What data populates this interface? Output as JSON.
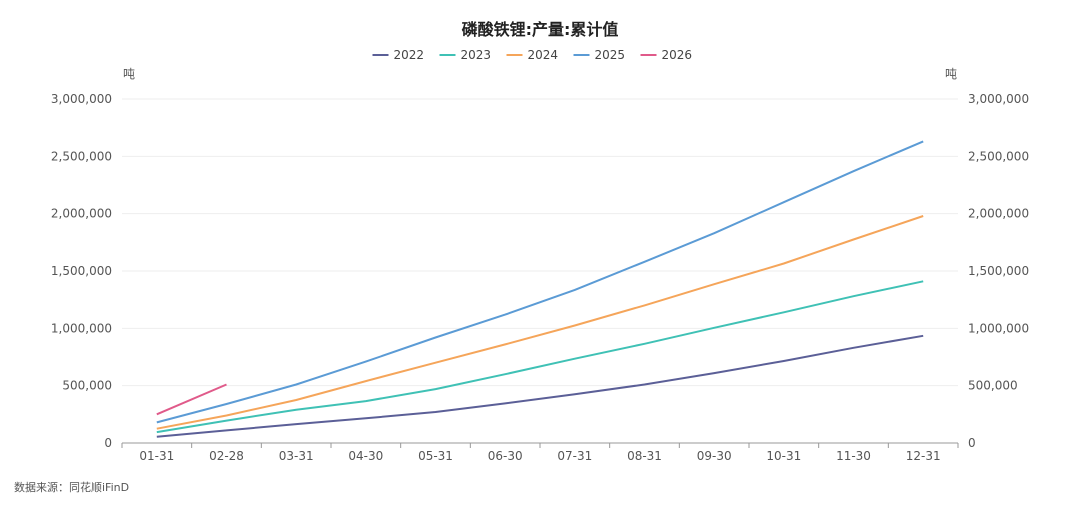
{
  "chart_data": {
    "type": "line",
    "title": "磷酸铁锂:产量:累计值",
    "categories": [
      "01-31",
      "02-28",
      "03-31",
      "04-30",
      "05-31",
      "06-30",
      "07-31",
      "08-31",
      "09-30",
      "10-31",
      "11-30",
      "12-31"
    ],
    "y_unit_left": "吨",
    "y_unit_right": "吨",
    "ylim": [
      0,
      3000000
    ],
    "y_ticks": [
      "0",
      "500,000",
      "1,000,000",
      "1,500,000",
      "2,000,000",
      "2,500,000",
      "3,000,000"
    ],
    "y_tick_values": [
      0,
      500000,
      1000000,
      1500000,
      2000000,
      2500000,
      3000000
    ],
    "series": [
      {
        "name": "2022",
        "color": "#5b5f97",
        "values": [
          55000,
          110000,
          165000,
          215000,
          270000,
          345000,
          425000,
          510000,
          610000,
          715000,
          830000,
          935000
        ]
      },
      {
        "name": "2023",
        "color": "#3fc1b5",
        "values": [
          95000,
          195000,
          290000,
          365000,
          470000,
          600000,
          735000,
          865000,
          1005000,
          1140000,
          1280000,
          1410000
        ]
      },
      {
        "name": "2024",
        "color": "#f5a55a",
        "values": [
          125000,
          240000,
          375000,
          540000,
          700000,
          860000,
          1025000,
          1200000,
          1385000,
          1565000,
          1775000,
          1980000
        ]
      },
      {
        "name": "2025",
        "color": "#5b9bd5",
        "values": [
          180000,
          340000,
          510000,
          710000,
          920000,
          1120000,
          1335000,
          1580000,
          1830000,
          2100000,
          2370000,
          2630000
        ]
      },
      {
        "name": "2026",
        "color": "#e05a8a",
        "values": [
          250000,
          510000,
          null,
          null,
          null,
          null,
          null,
          null,
          null,
          null,
          null,
          null
        ]
      }
    ],
    "legend_position": "top-center",
    "grid": true
  },
  "source": "数据来源：同花顺iFinD"
}
